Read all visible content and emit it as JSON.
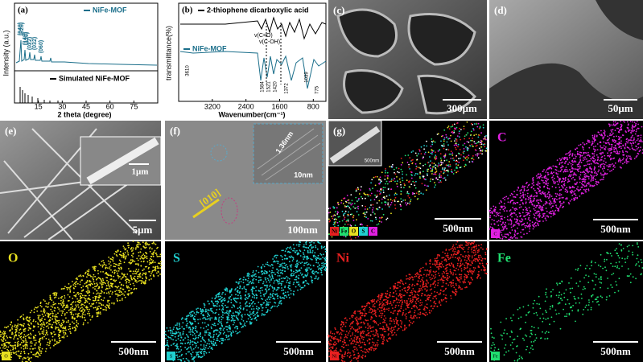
{
  "panel_a": {
    "label": "(a)",
    "legend": [
      "NiFe-MOF",
      "Simulated NiFe-MOF"
    ],
    "peaks": [
      "(040)",
      "(020)",
      "(140)",
      "(130)",
      "(022)",
      "(032)",
      "(060)"
    ],
    "xticks": [
      15,
      30,
      45,
      60,
      75
    ],
    "xlabel": "2 theta (degree)",
    "ylabel": "Intensity (a.u.)"
  },
  "panel_b": {
    "label": "(b)",
    "legend": [
      "2-thiophene dicarboxylic acid",
      "NiFe-MOF"
    ],
    "annotations": [
      "v(C=O)",
      "v(C-OH)"
    ],
    "peaks": [
      "3610",
      "1584",
      "1521",
      "1420",
      "1372",
      "1039",
      "775"
    ],
    "xticks": [
      3200,
      2400,
      1600,
      800
    ],
    "xlabel": "Wavenumber(cm⁻¹)",
    "ylabel": "transmittance(%)"
  },
  "panel_c": {
    "label": "(c)",
    "scale": "300μm"
  },
  "panel_d": {
    "label": "(d)",
    "scale": "50μm"
  },
  "panel_e": {
    "label": "(e)",
    "inset_scale": "1μm",
    "scale": "5μm"
  },
  "panel_f": {
    "label": "(f)",
    "direction": "[010]",
    "spacing": "1.36nm",
    "inset_scale": "10nm",
    "scale": "100nm"
  },
  "panel_g": {
    "label": "(g)",
    "inset_scale": "500nm",
    "scale": "500nm",
    "elements": [
      "Ni",
      "Fe",
      "O",
      "S",
      "C"
    ]
  },
  "maps": [
    {
      "element": "C",
      "color": "#e020e0",
      "scale": "500nm"
    },
    {
      "element": "O",
      "color": "#e8e020",
      "scale": "500nm"
    },
    {
      "element": "S",
      "color": "#20d0d0",
      "scale": "500nm"
    },
    {
      "element": "Ni",
      "color": "#e82020",
      "scale": "500nm"
    },
    {
      "element": "Fe",
      "color": "#20e070",
      "scale": "500nm"
    }
  ]
}
